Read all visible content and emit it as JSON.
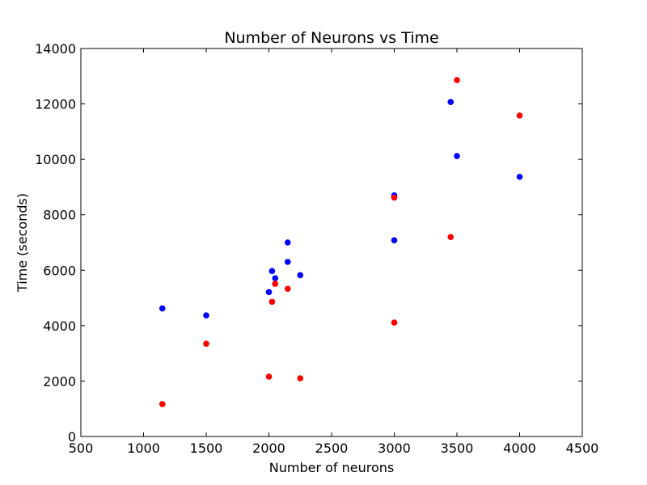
{
  "chart_data": {
    "type": "scatter",
    "title": "Number of Neurons vs Time",
    "xlabel": "Number of neurons",
    "ylabel": "Time (seconds)",
    "xlim": [
      500,
      4500
    ],
    "ylim": [
      0,
      14000
    ],
    "xticks": [
      500,
      1000,
      1500,
      2000,
      2500,
      3000,
      3500,
      4000,
      4500
    ],
    "yticks": [
      0,
      2000,
      4000,
      6000,
      8000,
      10000,
      12000,
      14000
    ],
    "grid": false,
    "legend": "none",
    "series": [
      {
        "color": "#0000ff",
        "points": [
          {
            "x": 1150,
            "y": 4620
          },
          {
            "x": 1500,
            "y": 4370
          },
          {
            "x": 2000,
            "y": 5210
          },
          {
            "x": 2025,
            "y": 5970
          },
          {
            "x": 2050,
            "y": 5710
          },
          {
            "x": 2150,
            "y": 7000
          },
          {
            "x": 2150,
            "y": 6300
          },
          {
            "x": 2250,
            "y": 5820
          },
          {
            "x": 3000,
            "y": 8700
          },
          {
            "x": 3000,
            "y": 7080
          },
          {
            "x": 3450,
            "y": 12070
          },
          {
            "x": 3500,
            "y": 10120
          },
          {
            "x": 4000,
            "y": 9370
          }
        ]
      },
      {
        "color": "#ff0000",
        "points": [
          {
            "x": 1150,
            "y": 1170
          },
          {
            "x": 1500,
            "y": 3350
          },
          {
            "x": 2000,
            "y": 2160
          },
          {
            "x": 2025,
            "y": 4860
          },
          {
            "x": 2050,
            "y": 5510
          },
          {
            "x": 2150,
            "y": 5330
          },
          {
            "x": 2250,
            "y": 2100
          },
          {
            "x": 3000,
            "y": 8620
          },
          {
            "x": 3000,
            "y": 4110
          },
          {
            "x": 3450,
            "y": 7200
          },
          {
            "x": 3500,
            "y": 12860
          },
          {
            "x": 4000,
            "y": 11580
          }
        ]
      }
    ]
  }
}
